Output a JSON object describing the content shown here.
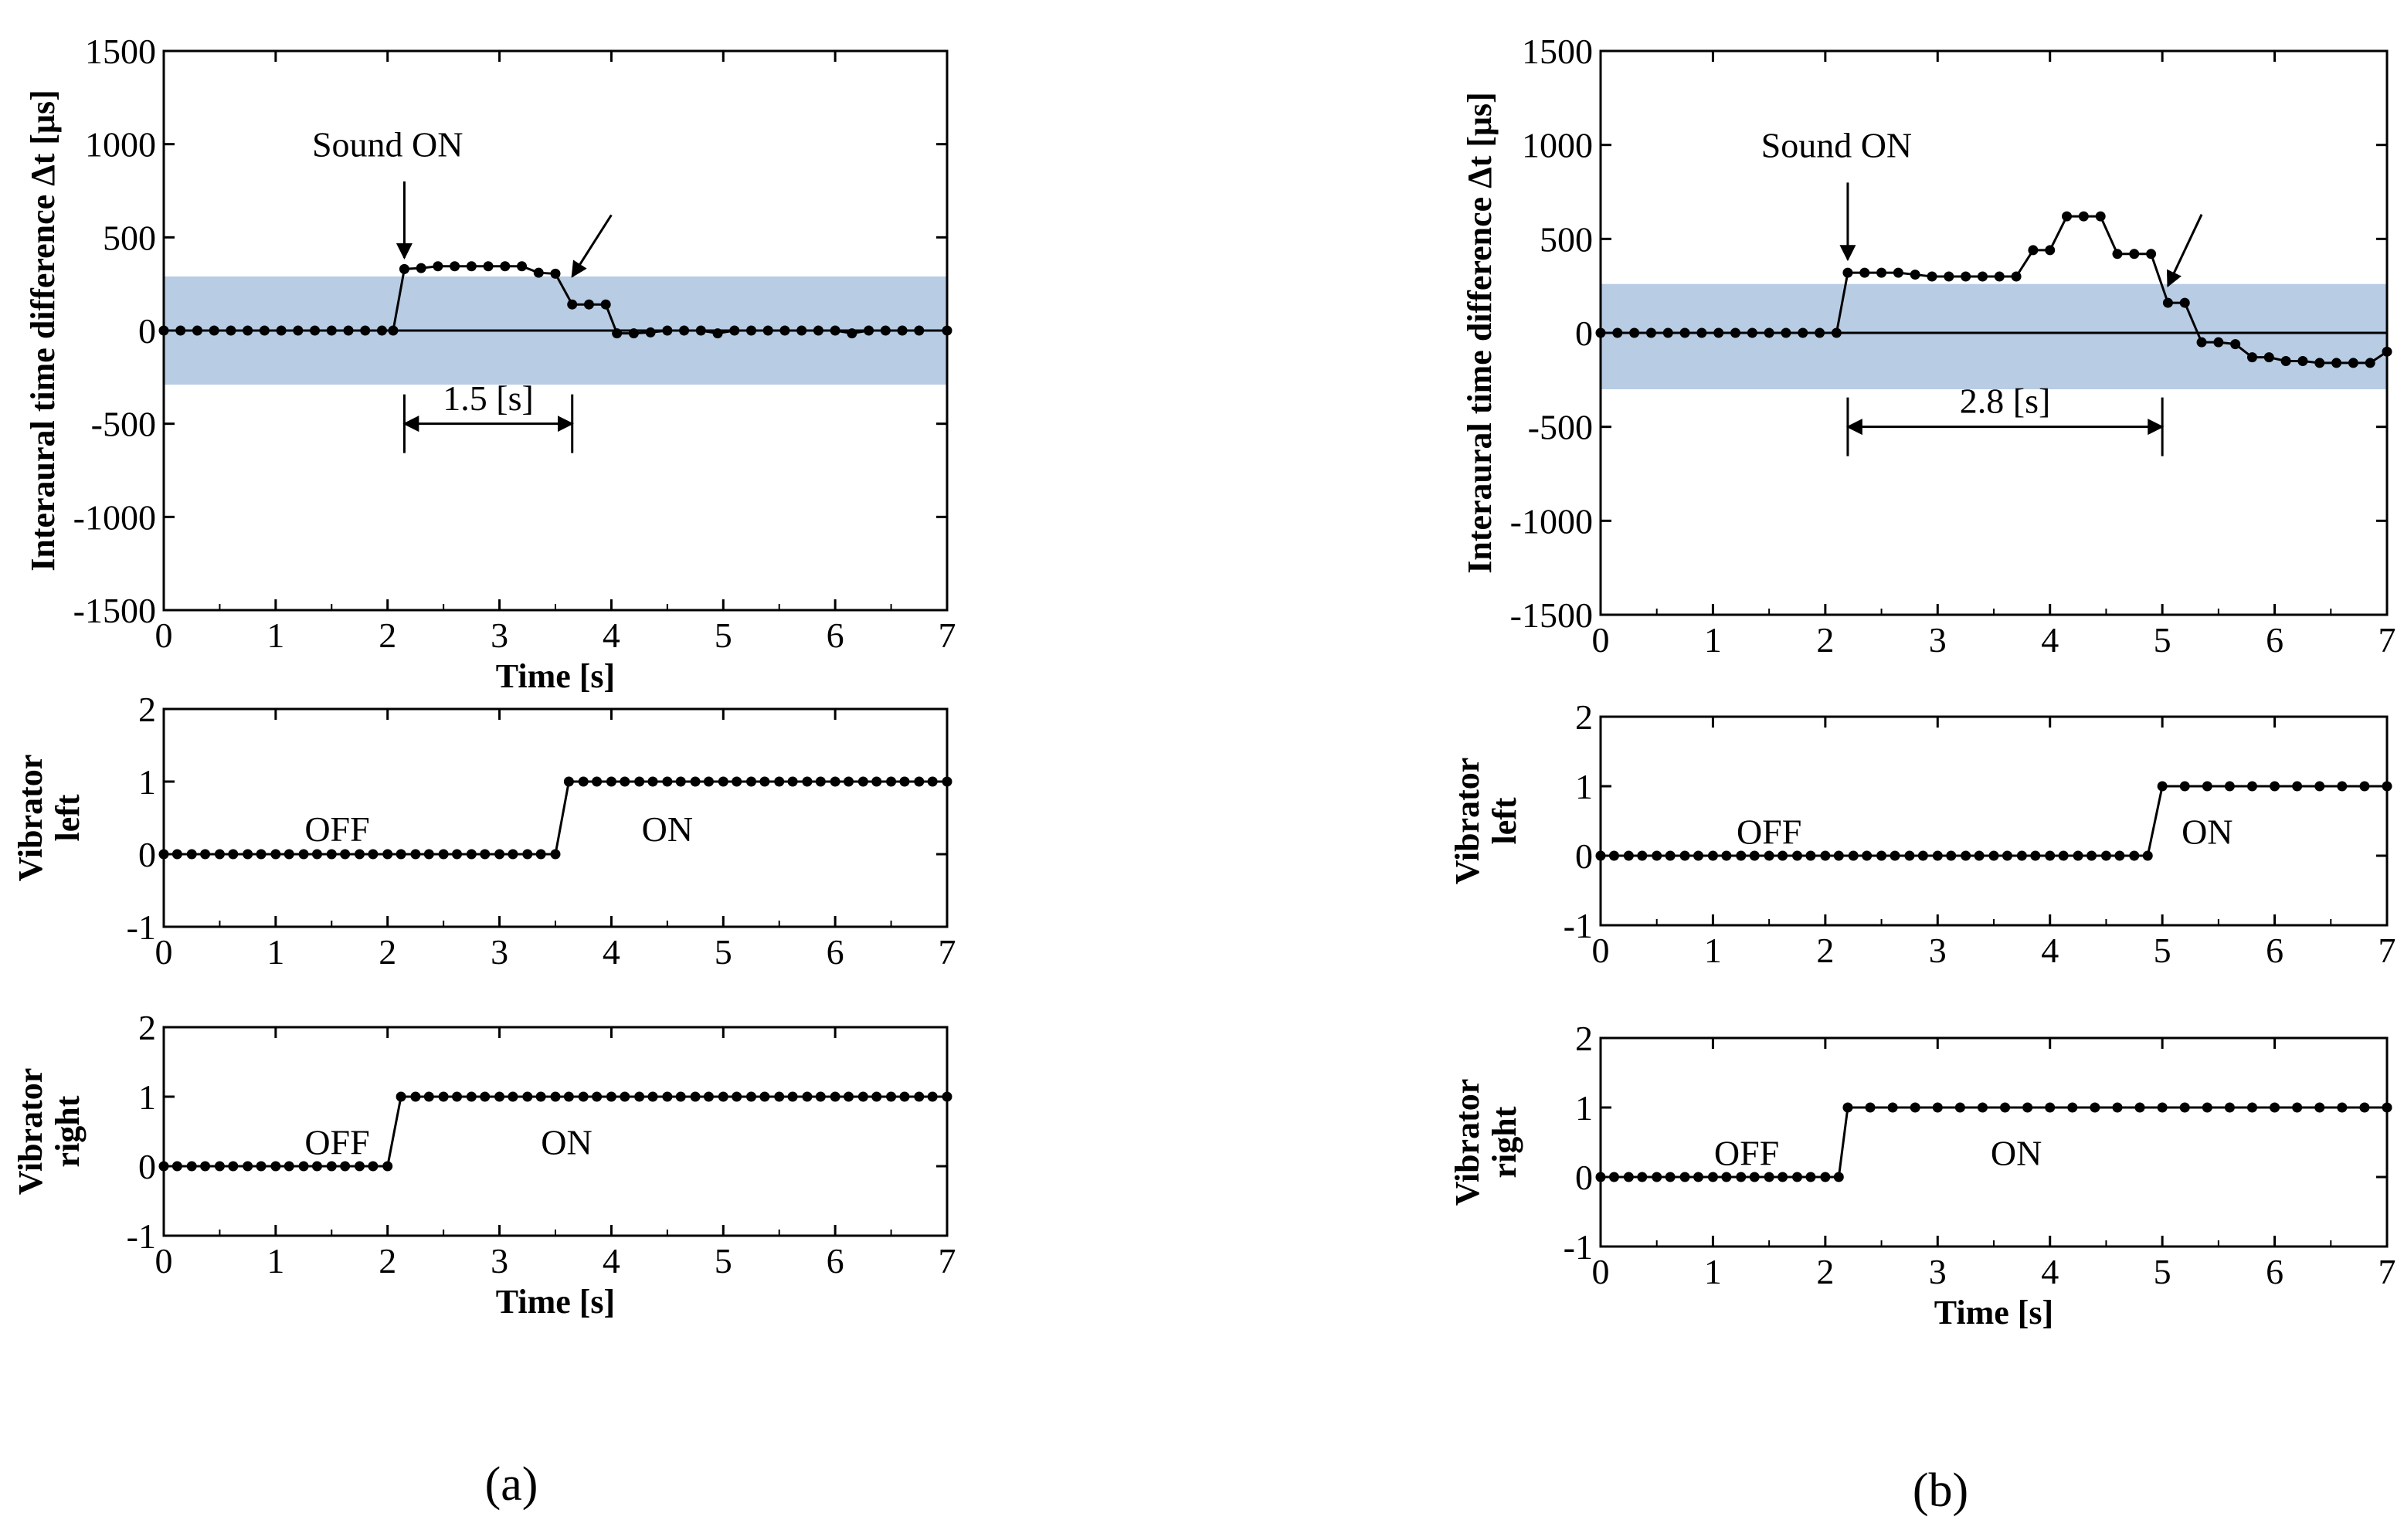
{
  "figure": {
    "panel_labels": [
      "(a)",
      "(b)"
    ],
    "colors": {
      "band": "#b8cce4",
      "line": "#000000",
      "background": "#ffffff"
    }
  },
  "chart_data": [
    {
      "panel": "(a)",
      "subplot": "interaural",
      "type": "line",
      "title": "",
      "xlabel": "Time [s]",
      "ylabel": "Interaural time difference Δt [μs]",
      "xlim": [
        0,
        7
      ],
      "ylim": [
        -1500,
        1500
      ],
      "xticks": [
        0,
        1,
        2,
        3,
        4,
        5,
        6,
        7
      ],
      "yticks": [
        -1500,
        -1000,
        -500,
        0,
        500,
        1000,
        1500
      ],
      "band": [
        -290,
        290
      ],
      "zero_line": true,
      "x": [
        0,
        0.15,
        0.3,
        0.45,
        0.6,
        0.75,
        0.9,
        1.05,
        1.2,
        1.35,
        1.5,
        1.65,
        1.8,
        1.95,
        2.05,
        2.15,
        2.3,
        2.45,
        2.6,
        2.75,
        2.9,
        3.05,
        3.2,
        3.35,
        3.5,
        3.65,
        3.8,
        3.95,
        4.05,
        4.2,
        4.35,
        4.5,
        4.65,
        4.8,
        4.95,
        5.1,
        5.25,
        5.4,
        5.55,
        5.7,
        5.85,
        6.0,
        6.15,
        6.3,
        6.45,
        6.6,
        6.75,
        7.0
      ],
      "y": [
        0,
        0,
        0,
        0,
        0,
        0,
        0,
        0,
        0,
        0,
        0,
        0,
        0,
        0,
        0,
        330,
        335,
        345,
        345,
        345,
        345,
        345,
        345,
        310,
        305,
        140,
        140,
        140,
        -15,
        -15,
        -10,
        0,
        0,
        0,
        -15,
        0,
        0,
        0,
        0,
        0,
        0,
        0,
        -15,
        0,
        0,
        0,
        0,
        0
      ],
      "annotations": [
        {
          "text": "Sound ON",
          "x": 2.0,
          "y": 1000
        },
        {
          "text": "1.5 [s]",
          "x": 2.9,
          "y": -360,
          "x_start": 2.15,
          "x_end": 3.65,
          "arrow_y": -500
        }
      ],
      "arrows": [
        {
          "x": 2.15,
          "y_from": 800,
          "y_to": 390
        },
        {
          "x_from": 4.0,
          "y_from": 620,
          "x_to": 3.65,
          "y_to": 290
        }
      ]
    },
    {
      "panel": "(a)",
      "subplot": "vibrator-left",
      "type": "line",
      "xlabel": "",
      "ylabel": "Vibrator left",
      "xlim": [
        0,
        7
      ],
      "ylim": [
        -1,
        2
      ],
      "xticks": [
        0,
        1,
        2,
        3,
        4,
        5,
        6,
        7
      ],
      "yticks": [
        -1,
        0,
        1,
        2
      ],
      "x": [
        0,
        0.12,
        0.25,
        0.37,
        0.5,
        0.62,
        0.75,
        0.87,
        1.0,
        1.12,
        1.25,
        1.37,
        1.5,
        1.62,
        1.75,
        1.87,
        2.0,
        2.12,
        2.25,
        2.37,
        2.5,
        2.62,
        2.75,
        2.87,
        3.0,
        3.12,
        3.25,
        3.37,
        3.5,
        3.62,
        3.75,
        3.87,
        4.0,
        4.12,
        4.25,
        4.37,
        4.5,
        4.62,
        4.75,
        4.87,
        5.0,
        5.12,
        5.25,
        5.37,
        5.5,
        5.62,
        5.75,
        5.87,
        6.0,
        6.12,
        6.25,
        6.37,
        6.5,
        6.62,
        6.75,
        6.87,
        7.0
      ],
      "y": [
        0,
        0,
        0,
        0,
        0,
        0,
        0,
        0,
        0,
        0,
        0,
        0,
        0,
        0,
        0,
        0,
        0,
        0,
        0,
        0,
        0,
        0,
        0,
        0,
        0,
        0,
        0,
        0,
        0,
        1,
        1,
        1,
        1,
        1,
        1,
        1,
        1,
        1,
        1,
        1,
        1,
        1,
        1,
        1,
        1,
        1,
        1,
        1,
        1,
        1,
        1,
        1,
        1,
        1,
        1,
        1,
        1
      ],
      "annotations": [
        {
          "text": "OFF",
          "x": 1.55,
          "y": 0.35
        },
        {
          "text": "ON",
          "x": 4.5,
          "y": 0.35
        }
      ]
    },
    {
      "panel": "(a)",
      "subplot": "vibrator-right",
      "type": "line",
      "xlabel": "Time [s]",
      "ylabel": "Vibrator right",
      "xlim": [
        0,
        7
      ],
      "ylim": [
        -1,
        2
      ],
      "xticks": [
        0,
        1,
        2,
        3,
        4,
        5,
        6,
        7
      ],
      "yticks": [
        -1,
        0,
        1,
        2
      ],
      "x": [
        0,
        0.12,
        0.25,
        0.37,
        0.5,
        0.62,
        0.75,
        0.87,
        1.0,
        1.12,
        1.25,
        1.37,
        1.5,
        1.62,
        1.75,
        1.87,
        2.0,
        2.12,
        2.25,
        2.37,
        2.5,
        2.62,
        2.75,
        2.87,
        3.0,
        3.12,
        3.25,
        3.37,
        3.5,
        3.62,
        3.75,
        3.87,
        4.0,
        4.12,
        4.25,
        4.37,
        4.5,
        4.62,
        4.75,
        4.87,
        5.0,
        5.12,
        5.25,
        5.37,
        5.5,
        5.62,
        5.75,
        5.87,
        6.0,
        6.12,
        6.25,
        6.37,
        6.5,
        6.62,
        6.75,
        6.87,
        7.0
      ],
      "y": [
        0,
        0,
        0,
        0,
        0,
        0,
        0,
        0,
        0,
        0,
        0,
        0,
        0,
        0,
        0,
        0,
        0,
        1,
        1,
        1,
        1,
        1,
        1,
        1,
        1,
        1,
        1,
        1,
        1,
        1,
        1,
        1,
        1,
        1,
        1,
        1,
        1,
        1,
        1,
        1,
        1,
        1,
        1,
        1,
        1,
        1,
        1,
        1,
        1,
        1,
        1,
        1,
        1,
        1,
        1,
        1,
        1
      ],
      "annotations": [
        {
          "text": "OFF",
          "x": 1.55,
          "y": 0.35
        },
        {
          "text": "ON",
          "x": 3.6,
          "y": 0.35
        }
      ]
    },
    {
      "panel": "(b)",
      "subplot": "interaural",
      "type": "line",
      "title": "",
      "xlabel": "",
      "ylabel": "Interaural time difference Δt [μs]",
      "xlim": [
        0,
        7
      ],
      "ylim": [
        -1500,
        1500
      ],
      "xticks": [
        0,
        1,
        2,
        3,
        4,
        5,
        6,
        7
      ],
      "yticks": [
        -1500,
        -1000,
        -500,
        0,
        500,
        1000,
        1500
      ],
      "band": [
        -300,
        260
      ],
      "zero_line": true,
      "x": [
        0,
        0.15,
        0.3,
        0.45,
        0.6,
        0.75,
        0.9,
        1.05,
        1.2,
        1.35,
        1.5,
        1.65,
        1.8,
        1.95,
        2.1,
        2.2,
        2.35,
        2.5,
        2.65,
        2.8,
        2.95,
        3.1,
        3.25,
        3.4,
        3.55,
        3.7,
        3.85,
        4.0,
        4.15,
        4.3,
        4.45,
        4.6,
        4.75,
        4.9,
        5.05,
        5.2,
        5.35,
        5.5,
        5.65,
        5.8,
        5.95,
        6.1,
        6.25,
        6.4,
        6.55,
        6.7,
        6.85,
        7.0
      ],
      "y": [
        0,
        0,
        0,
        0,
        0,
        0,
        0,
        0,
        0,
        0,
        0,
        0,
        0,
        0,
        0,
        320,
        320,
        320,
        320,
        310,
        300,
        300,
        300,
        300,
        300,
        300,
        440,
        440,
        620,
        620,
        620,
        420,
        420,
        420,
        160,
        160,
        -50,
        -50,
        -60,
        -130,
        -130,
        -150,
        -150,
        -160,
        -160,
        -160,
        -160,
        -100
      ],
      "annotations": [
        {
          "text": "Sound ON",
          "x": 2.1,
          "y": 1000
        },
        {
          "text": "2.8 [s]",
          "x": 3.6,
          "y": -360,
          "x_start": 2.2,
          "x_end": 5.0,
          "arrow_y": -500
        }
      ],
      "arrows": [
        {
          "x": 2.2,
          "y_from": 800,
          "y_to": 390
        },
        {
          "x_from": 5.35,
          "y_from": 630,
          "x_to": 5.05,
          "y_to": 250
        }
      ]
    },
    {
      "panel": "(b)",
      "subplot": "vibrator-left",
      "type": "line",
      "xlabel": "",
      "ylabel": "Vibrator left",
      "xlim": [
        0,
        7
      ],
      "ylim": [
        -1,
        2
      ],
      "xticks": [
        0,
        1,
        2,
        3,
        4,
        5,
        6,
        7
      ],
      "yticks": [
        -1,
        0,
        1,
        2
      ],
      "x": [
        0,
        0.12,
        0.25,
        0.37,
        0.5,
        0.62,
        0.75,
        0.87,
        1.0,
        1.12,
        1.25,
        1.37,
        1.5,
        1.62,
        1.75,
        1.87,
        2.0,
        2.12,
        2.25,
        2.37,
        2.5,
        2.62,
        2.75,
        2.87,
        3.0,
        3.12,
        3.25,
        3.37,
        3.5,
        3.62,
        3.75,
        3.87,
        4.0,
        4.12,
        4.25,
        4.37,
        4.5,
        4.62,
        4.75,
        4.87,
        5.0,
        5.2,
        5.4,
        5.6,
        5.8,
        6.0,
        6.2,
        6.4,
        6.6,
        6.8,
        7.0
      ],
      "y": [
        0,
        0,
        0,
        0,
        0,
        0,
        0,
        0,
        0,
        0,
        0,
        0,
        0,
        0,
        0,
        0,
        0,
        0,
        0,
        0,
        0,
        0,
        0,
        0,
        0,
        0,
        0,
        0,
        0,
        0,
        0,
        0,
        0,
        0,
        0,
        0,
        0,
        0,
        0,
        0,
        1,
        1,
        1,
        1,
        1,
        1,
        1,
        1,
        1,
        1,
        1
      ],
      "annotations": [
        {
          "text": "OFF",
          "x": 1.5,
          "y": 0.35
        },
        {
          "text": "ON",
          "x": 5.4,
          "y": 0.35
        }
      ]
    },
    {
      "panel": "(b)",
      "subplot": "vibrator-right",
      "type": "line",
      "xlabel": "Time [s]",
      "ylabel": "Vibrator right",
      "xlim": [
        0,
        7
      ],
      "ylim": [
        -1,
        2
      ],
      "xticks": [
        0,
        1,
        2,
        3,
        4,
        5,
        6,
        7
      ],
      "yticks": [
        -1,
        0,
        1,
        2
      ],
      "x": [
        0,
        0.12,
        0.25,
        0.37,
        0.5,
        0.62,
        0.75,
        0.87,
        1.0,
        1.12,
        1.25,
        1.37,
        1.5,
        1.62,
        1.75,
        1.87,
        2.0,
        2.12,
        2.2,
        2.4,
        2.6,
        2.8,
        3.0,
        3.2,
        3.4,
        3.6,
        3.8,
        4.0,
        4.2,
        4.4,
        4.6,
        4.8,
        5.0,
        5.2,
        5.4,
        5.6,
        5.8,
        6.0,
        6.2,
        6.4,
        6.6,
        6.8,
        7.0
      ],
      "y": [
        0,
        0,
        0,
        0,
        0,
        0,
        0,
        0,
        0,
        0,
        0,
        0,
        0,
        0,
        0,
        0,
        0,
        0,
        1,
        1,
        1,
        1,
        1,
        1,
        1,
        1,
        1,
        1,
        1,
        1,
        1,
        1,
        1,
        1,
        1,
        1,
        1,
        1,
        1,
        1,
        1,
        1,
        1
      ],
      "annotations": [
        {
          "text": "OFF",
          "x": 1.3,
          "y": 0.35
        },
        {
          "text": "ON",
          "x": 3.7,
          "y": 0.35
        }
      ]
    }
  ]
}
